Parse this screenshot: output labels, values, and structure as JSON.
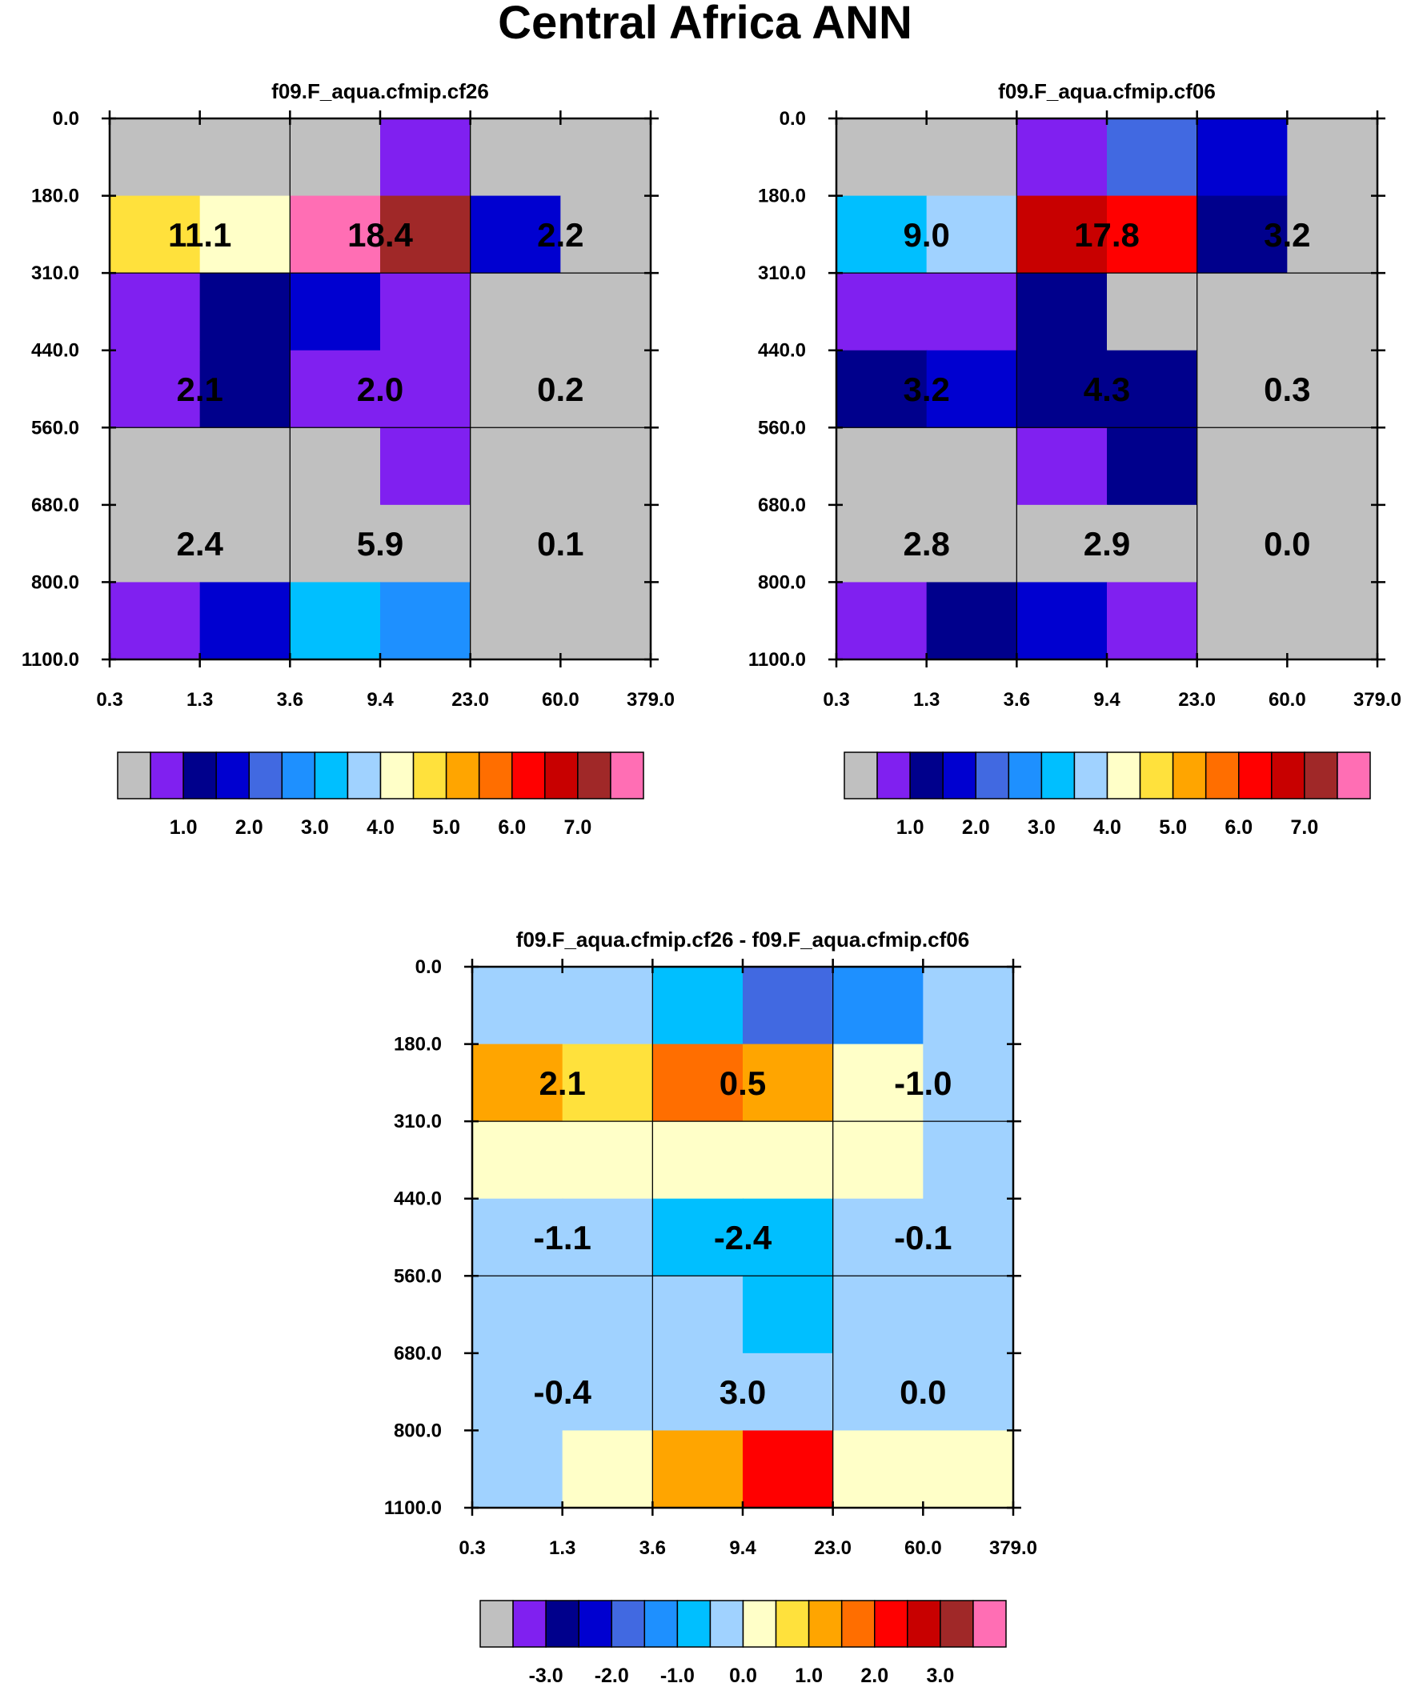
{
  "title": "Central Africa ANN",
  "palette": [
    "#c0c0c0",
    "#8020f0",
    "#00008c",
    "#0000d0",
    "#4169e1",
    "#1e90ff",
    "#00bfff",
    "#a0d2ff",
    "#ffffc8",
    "#ffe13c",
    "#ffa500",
    "#ff6e00",
    "#ff0000",
    "#c80000",
    "#a02828",
    "#ff6eb4"
  ],
  "chart_data": [
    {
      "type": "heatmap",
      "title": "f09.F_aqua.cfmip.cf26",
      "x_tick_labels": [
        "0.3",
        "1.3",
        "3.6",
        "9.4",
        "23.0",
        "60.0",
        "379.0"
      ],
      "y_tick_labels": [
        "0.0",
        "180.0",
        "310.0",
        "440.0",
        "560.0",
        "680.0",
        "800.0",
        "1100.0"
      ],
      "grid_colors": [
        [
          0,
          0,
          0,
          1,
          0,
          0
        ],
        [
          9,
          8,
          15,
          14,
          3,
          0
        ],
        [
          1,
          2,
          3,
          1,
          0,
          0
        ],
        [
          1,
          2,
          1,
          1,
          0,
          0
        ],
        [
          0,
          0,
          0,
          1,
          0,
          0
        ],
        [
          0,
          0,
          0,
          0,
          0,
          0
        ],
        [
          1,
          3,
          6,
          5,
          0,
          0
        ]
      ],
      "cell_values": [
        [
          "11.1",
          "18.4",
          "2.2"
        ],
        [
          "2.1",
          "2.0",
          "0.2"
        ],
        [
          "2.4",
          "5.9",
          "0.1"
        ]
      ],
      "colorbar_labels": [
        "1.0",
        "2.0",
        "3.0",
        "4.0",
        "5.0",
        "6.0",
        "7.0"
      ]
    },
    {
      "type": "heatmap",
      "title": "f09.F_aqua.cfmip.cf06",
      "x_tick_labels": [
        "0.3",
        "1.3",
        "3.6",
        "9.4",
        "23.0",
        "60.0",
        "379.0"
      ],
      "y_tick_labels": [
        "0.0",
        "180.0",
        "310.0",
        "440.0",
        "560.0",
        "680.0",
        "800.0",
        "1100.0"
      ],
      "grid_colors": [
        [
          0,
          0,
          1,
          4,
          3,
          0
        ],
        [
          6,
          7,
          13,
          12,
          2,
          0
        ],
        [
          1,
          1,
          2,
          0,
          0,
          0
        ],
        [
          2,
          3,
          2,
          2,
          0,
          0
        ],
        [
          0,
          0,
          1,
          2,
          0,
          0
        ],
        [
          0,
          0,
          0,
          0,
          0,
          0
        ],
        [
          1,
          2,
          3,
          1,
          0,
          0
        ]
      ],
      "cell_values": [
        [
          "9.0",
          "17.8",
          "3.2"
        ],
        [
          "3.2",
          "4.3",
          "0.3"
        ],
        [
          "2.8",
          "2.9",
          "0.0"
        ]
      ],
      "colorbar_labels": [
        "1.0",
        "2.0",
        "3.0",
        "4.0",
        "5.0",
        "6.0",
        "7.0"
      ]
    },
    {
      "type": "heatmap",
      "title": "f09.F_aqua.cfmip.cf26 - f09.F_aqua.cfmip.cf06",
      "x_tick_labels": [
        "0.3",
        "1.3",
        "3.6",
        "9.4",
        "23.0",
        "60.0",
        "379.0"
      ],
      "y_tick_labels": [
        "0.0",
        "180.0",
        "310.0",
        "440.0",
        "560.0",
        "680.0",
        "800.0",
        "1100.0"
      ],
      "grid_colors": [
        [
          7,
          7,
          6,
          4,
          5,
          7
        ],
        [
          10,
          9,
          11,
          10,
          8,
          7
        ],
        [
          8,
          8,
          8,
          8,
          8,
          7
        ],
        [
          7,
          7,
          6,
          6,
          7,
          7
        ],
        [
          7,
          7,
          7,
          6,
          7,
          7
        ],
        [
          7,
          7,
          7,
          7,
          7,
          7
        ],
        [
          7,
          8,
          10,
          12,
          8,
          8
        ]
      ],
      "cell_values": [
        [
          "2.1",
          "0.5",
          "-1.0"
        ],
        [
          "-1.1",
          "-2.4",
          "-0.1"
        ],
        [
          "-0.4",
          "3.0",
          "0.0"
        ]
      ],
      "colorbar_labels": [
        "-3.0",
        "-2.0",
        "-1.0",
        "0.0",
        "1.0",
        "2.0",
        "3.0"
      ]
    }
  ]
}
